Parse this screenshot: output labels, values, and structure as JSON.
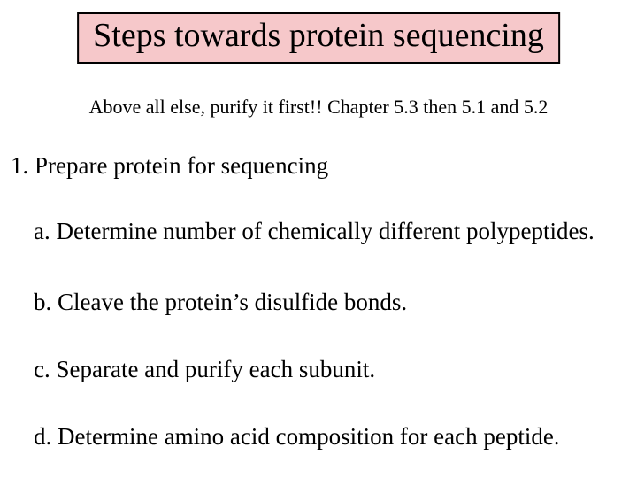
{
  "title": "Steps towards protein sequencing",
  "subtitle": "Above all else, purify it first!!  Chapter 5.3 then 5.1 and 5.2",
  "body": {
    "item1": "1. Prepare protein for sequencing",
    "item1a": "a. Determine number of chemically different polypeptides.",
    "item1b": "b. Cleave the protein’s disulfide bonds.",
    "item1c": "c. Separate and purify each subunit.",
    "item1d": "d. Determine amino acid composition for each peptide."
  },
  "colors": {
    "title_bg": "#f6c8ca",
    "title_border": "#000000",
    "text": "#000000",
    "page_bg": "#ffffff"
  },
  "typography": {
    "family": "Times New Roman",
    "title_size_pt": 38,
    "subtitle_size_pt": 22,
    "body_size_pt": 27
  }
}
